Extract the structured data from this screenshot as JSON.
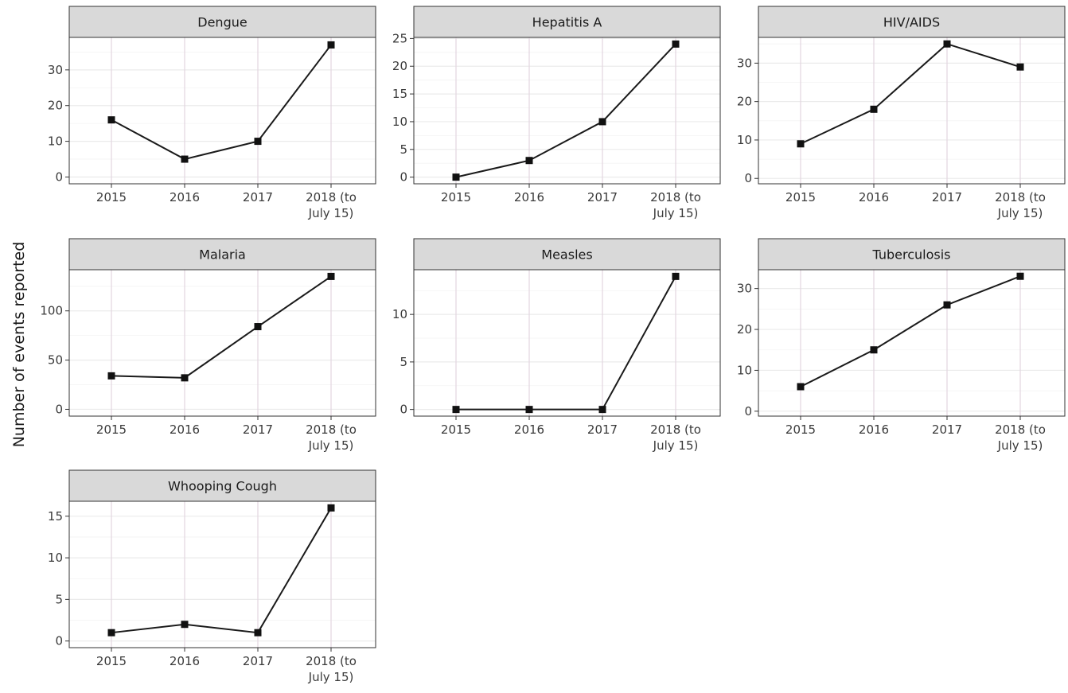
{
  "chart_data": {
    "type": "line",
    "ylabel": "Number of events reported",
    "xlabel": "",
    "categories": [
      "2015",
      "2016",
      "2017",
      "2018 (to July 15)"
    ],
    "category_lines": [
      [
        "2015"
      ],
      [
        "2016"
      ],
      [
        "2017"
      ],
      [
        "2018 (to",
        "July 15)"
      ]
    ],
    "panels": [
      {
        "name": "Dengue",
        "values": [
          16,
          5,
          10,
          37
        ],
        "ylim": [
          -1.9,
          39.1
        ],
        "yticks": [
          0,
          10,
          20,
          30
        ]
      },
      {
        "name": "Hepatitis A",
        "values": [
          0,
          3,
          10,
          24
        ],
        "ylim": [
          -1.2,
          25.2
        ],
        "yticks": [
          0,
          5,
          10,
          15,
          20,
          25
        ]
      },
      {
        "name": "HIV/AIDS",
        "values": [
          9,
          18,
          35,
          29
        ],
        "ylim": [
          -1.4,
          36.7
        ],
        "yticks": [
          0,
          10,
          20,
          30
        ]
      },
      {
        "name": "Malaria",
        "values": [
          34,
          32,
          84,
          135
        ],
        "ylim": [
          -6.9,
          141.8
        ],
        "yticks": [
          0,
          50,
          100
        ]
      },
      {
        "name": "Measles",
        "values": [
          0,
          0,
          0,
          14
        ],
        "ylim": [
          -0.7,
          14.7
        ],
        "yticks": [
          0,
          5,
          10
        ]
      },
      {
        "name": "Tuberculosis",
        "values": [
          6,
          15,
          26,
          33
        ],
        "ylim": [
          -1.2,
          34.6
        ],
        "yticks": [
          0,
          10,
          20,
          30
        ]
      },
      {
        "name": "Whooping Cough",
        "values": [
          1,
          2,
          1,
          16
        ],
        "ylim": [
          -0.8,
          16.8
        ],
        "yticks": [
          0,
          5,
          10,
          15
        ]
      }
    ],
    "grid": true,
    "legend": "none",
    "colors": {
      "line": "#1a1a1a",
      "marker": "#111111",
      "strip_fill": "#d9d9d9",
      "panel_border": "#333333"
    }
  }
}
